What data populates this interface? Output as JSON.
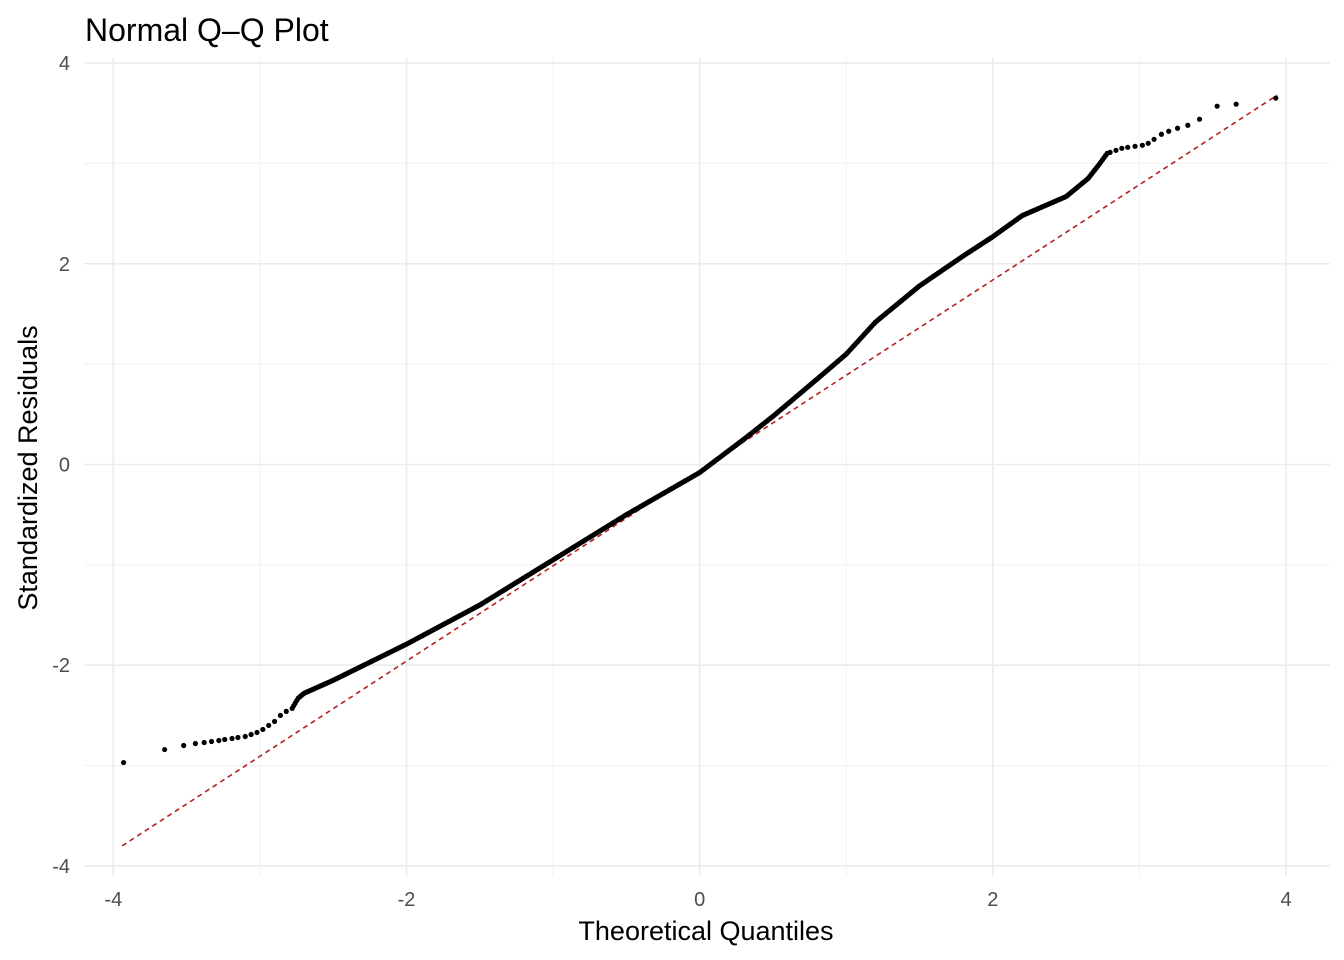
{
  "chart_data": {
    "type": "scatter",
    "title": "Normal Q–Q Plot",
    "xlabel": "Theoretical Quantiles",
    "ylabel": "Standardized Residuals",
    "xlim": [
      -4.2,
      4.3
    ],
    "ylim": [
      -4.1,
      4.05
    ],
    "x_ticks": [
      -4,
      -2,
      0,
      2,
      4
    ],
    "x_tick_labels": [
      "-4",
      "-2",
      "0",
      "2",
      "4"
    ],
    "y_ticks": [
      -4,
      -2,
      0,
      2,
      4
    ],
    "y_tick_labels": [
      "-4",
      "-2",
      "0",
      "2",
      "4"
    ],
    "grid": true,
    "colors": {
      "points": "#000000",
      "reference_line": "#b22222",
      "grid": "#ebebeb"
    },
    "reference_line": {
      "x": [
        -3.94,
        3.94
      ],
      "y": [
        -3.8,
        3.68
      ],
      "style": "dashed"
    },
    "curve_control_points": {
      "x": [
        -2.78,
        -2.74,
        -2.7,
        -2.5,
        -2.0,
        -1.5,
        -1.0,
        -0.5,
        0.0,
        0.3,
        0.5,
        0.8,
        1.0,
        1.2,
        1.5,
        1.8,
        2.0,
        2.2,
        2.5,
        2.65,
        2.72,
        2.78
      ],
      "y": [
        -2.43,
        -2.33,
        -2.28,
        -2.15,
        -1.79,
        -1.4,
        -0.95,
        -0.5,
        -0.08,
        0.25,
        0.48,
        0.85,
        1.1,
        1.42,
        1.78,
        2.08,
        2.27,
        2.48,
        2.67,
        2.85,
        2.98,
        3.1
      ]
    },
    "tail_points": [
      {
        "x": -3.93,
        "y": -2.97
      },
      {
        "x": -3.65,
        "y": -2.84
      },
      {
        "x": -3.52,
        "y": -2.8
      },
      {
        "x": -3.44,
        "y": -2.78
      },
      {
        "x": -3.38,
        "y": -2.77
      },
      {
        "x": -3.33,
        "y": -2.76
      },
      {
        "x": -3.28,
        "y": -2.75
      },
      {
        "x": -3.24,
        "y": -2.74
      },
      {
        "x": -3.19,
        "y": -2.73
      },
      {
        "x": -3.15,
        "y": -2.72
      },
      {
        "x": -3.1,
        "y": -2.71
      },
      {
        "x": -3.06,
        "y": -2.69
      },
      {
        "x": -3.02,
        "y": -2.67
      },
      {
        "x": -2.98,
        "y": -2.64
      },
      {
        "x": -2.94,
        "y": -2.6
      },
      {
        "x": -2.9,
        "y": -2.56
      },
      {
        "x": -2.86,
        "y": -2.5
      },
      {
        "x": -2.82,
        "y": -2.46
      },
      {
        "x": 2.8,
        "y": 3.11
      },
      {
        "x": 2.84,
        "y": 3.13
      },
      {
        "x": 2.88,
        "y": 3.15
      },
      {
        "x": 2.92,
        "y": 3.16
      },
      {
        "x": 2.97,
        "y": 3.17
      },
      {
        "x": 3.02,
        "y": 3.18
      },
      {
        "x": 3.06,
        "y": 3.2
      },
      {
        "x": 3.1,
        "y": 3.24
      },
      {
        "x": 3.15,
        "y": 3.29
      },
      {
        "x": 3.2,
        "y": 3.32
      },
      {
        "x": 3.26,
        "y": 3.35
      },
      {
        "x": 3.33,
        "y": 3.38
      },
      {
        "x": 3.41,
        "y": 3.44
      },
      {
        "x": 3.53,
        "y": 3.57
      },
      {
        "x": 3.66,
        "y": 3.59
      },
      {
        "x": 3.93,
        "y": 3.65
      }
    ]
  }
}
